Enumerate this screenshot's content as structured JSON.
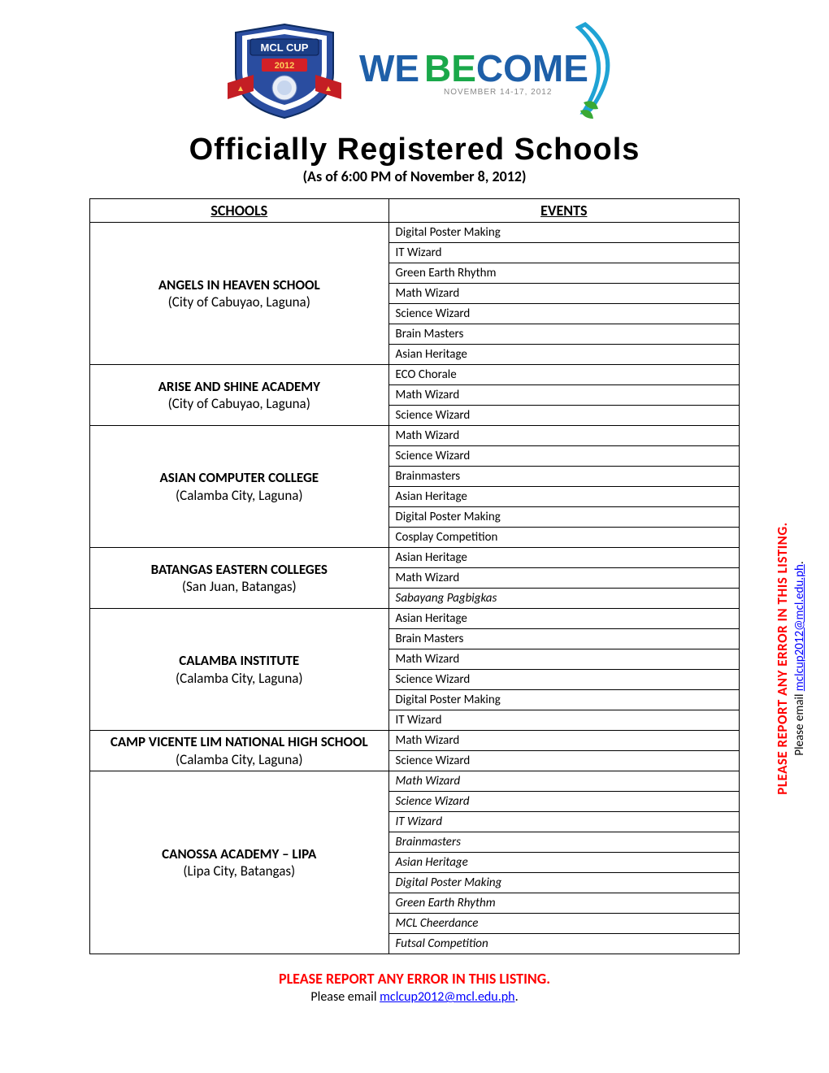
{
  "colors": {
    "text": "#000000",
    "error_red": "#ff0000",
    "link_blue": "#0000ff",
    "border": "#000000",
    "bg": "#ffffff"
  },
  "logo": {
    "banner_text": "MCL CUP",
    "year": "2012",
    "we_become": {
      "we": "WE",
      "become": "BECOME",
      "be_color": "#1aa84a",
      "rest_color": "#1e5fa8"
    },
    "dates": "NOVEMBER 14-17, 2012",
    "shield_colors": [
      "#2a4da0",
      "#ffffff",
      "#d32027"
    ],
    "ribbon_color": "#c41e24",
    "leaf_color": "#3aa935",
    "swoosh_color": "#1fa3d4"
  },
  "title": "Officially Registered Schools",
  "subtitle": "(As of 6:00 PM of November 8, 2012)",
  "table": {
    "columns": [
      "SCHOOLS",
      "EVENTS"
    ],
    "col_widths_pct": [
      46,
      54
    ],
    "rows": [
      {
        "school_name": "ANGELS IN HEAVEN SCHOOL",
        "school_loc": "(City of Cabuyao, Laguna)",
        "events": [
          {
            "t": "Digital Poster Making"
          },
          {
            "t": "IT Wizard"
          },
          {
            "t": "Green Earth Rhythm"
          },
          {
            "t": "Math Wizard"
          },
          {
            "t": "Science Wizard"
          },
          {
            "t": "Brain Masters"
          },
          {
            "t": "Asian Heritage"
          }
        ]
      },
      {
        "school_name": "ARISE AND SHINE ACADEMY",
        "school_loc": "(City of Cabuyao, Laguna)",
        "events": [
          {
            "t": "ECO Chorale"
          },
          {
            "t": "Math Wizard"
          },
          {
            "t": "Science Wizard"
          }
        ]
      },
      {
        "school_name": "ASIAN COMPUTER COLLEGE",
        "school_loc": "(Calamba City, Laguna)",
        "events": [
          {
            "t": "Math Wizard"
          },
          {
            "t": "Science Wizard"
          },
          {
            "t": "Brainmasters"
          },
          {
            "t": "Asian Heritage"
          },
          {
            "t": "Digital Poster Making"
          },
          {
            "t": "Cosplay Competition"
          }
        ]
      },
      {
        "school_name": "BATANGAS EASTERN COLLEGES",
        "school_loc": "(San Juan, Batangas)",
        "events": [
          {
            "t": "Asian Heritage"
          },
          {
            "t": "Math Wizard"
          },
          {
            "t": "Sabayang Pagbigkas",
            "italic": true
          }
        ]
      },
      {
        "school_name": "CALAMBA INSTITUTE",
        "school_loc": "(Calamba City, Laguna)",
        "events": [
          {
            "t": "Asian Heritage"
          },
          {
            "t": "Brain Masters"
          },
          {
            "t": "Math Wizard"
          },
          {
            "t": "Science Wizard"
          },
          {
            "t": "Digital Poster Making"
          },
          {
            "t": "IT Wizard"
          }
        ]
      },
      {
        "school_name": "CAMP VICENTE LIM NATIONAL HIGH SCHOOL",
        "school_loc": "(Calamba City, Laguna)",
        "name_inline_loc": true,
        "events": [
          {
            "t": "Math Wizard"
          },
          {
            "t": "Science Wizard"
          }
        ]
      },
      {
        "school_name": "CANOSSA ACADEMY – LIPA",
        "school_loc": "(Lipa City, Batangas)",
        "all_italic": true,
        "events": [
          {
            "t": "Math Wizard"
          },
          {
            "t": "Science Wizard"
          },
          {
            "t": "IT Wizard"
          },
          {
            "t": "Brainmasters"
          },
          {
            "t": "Asian Heritage"
          },
          {
            "t": "Digital Poster Making"
          },
          {
            "t": "Green Earth Rhythm"
          },
          {
            "t": "MCL Cheerdance"
          },
          {
            "t": "Futsal Competition"
          }
        ]
      }
    ]
  },
  "footer": {
    "line1": "PLEASE REPORT ANY ERROR IN THIS LISTING.",
    "line2_prefix": "Please email ",
    "email": "mclcup2012@mcl.edu.ph",
    "line2_suffix": "."
  },
  "sidenote": {
    "line1": "PLEASE REPORT ANY ERROR IN THIS LISTING.",
    "line2_prefix": "Please email ",
    "email": "mclcup2012@mcl.edu.ph",
    "line2_suffix": "."
  }
}
